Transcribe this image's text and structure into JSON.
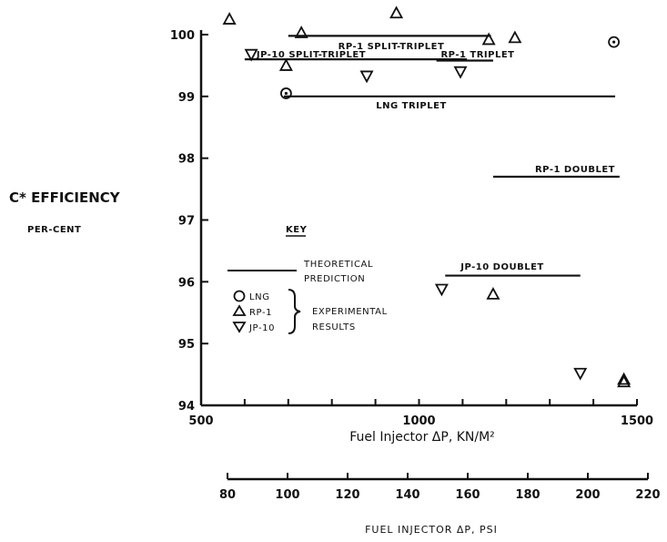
{
  "chart_data": {
    "type": "scatter",
    "ylabel": "C* EFFICIENCY",
    "ylabel_sub": "PER-CENT",
    "ylim": [
      94,
      100
    ],
    "y_ticks": [
      "94",
      "95",
      "96",
      "97",
      "98",
      "99",
      "100"
    ],
    "xlabel": "Fuel Injector ΔP, KN/M²",
    "xlim": [
      500,
      1500
    ],
    "x_ticks": [
      "500",
      "1000",
      "1500"
    ],
    "x2label": "FUEL INJECTOR ΔP, PSI",
    "x2lim": [
      80,
      220
    ],
    "x2_ticks": [
      "80",
      "100",
      "120",
      "140",
      "160",
      "180",
      "200",
      "220"
    ],
    "prediction_lines": [
      {
        "name": "RP-1 SPLIT-TRIPLET",
        "x": [
          700,
          1165
        ],
        "y": 99.98
      },
      {
        "name": "JP-10 SPLIT-TRIPLET",
        "x": [
          600,
          1110
        ],
        "y": 99.6
      },
      {
        "name": "RP-1 TRIPLET",
        "x": [
          1040,
          1170
        ],
        "y": 99.58
      },
      {
        "name": "LNG TRIPLET",
        "x": [
          690,
          1450
        ],
        "y": 99.0
      },
      {
        "name": "RP-1 DOUBLET",
        "x": [
          1170,
          1460
        ],
        "y": 97.7
      },
      {
        "name": "JP-10 DOUBLET",
        "x": [
          1060,
          1370
        ],
        "y": 96.1
      }
    ],
    "series": [
      {
        "name": "LNG",
        "marker": "circle",
        "points": [
          [
            695,
            99.05
          ],
          [
            1447,
            99.88
          ]
        ]
      },
      {
        "name": "RP-1",
        "marker": "triangle-up",
        "points": [
          [
            565,
            100.25
          ],
          [
            730,
            100.03
          ],
          [
            948,
            100.35
          ],
          [
            1160,
            99.92
          ],
          [
            1220,
            99.95
          ],
          [
            695,
            99.5
          ],
          [
            1170,
            95.8
          ],
          [
            1470,
            94.42
          ],
          [
            1470,
            94.38
          ]
        ]
      },
      {
        "name": "JP-10",
        "marker": "triangle-down",
        "points": [
          [
            615,
            99.68
          ],
          [
            880,
            99.33
          ],
          [
            1095,
            99.4
          ],
          [
            1052,
            95.88
          ],
          [
            1370,
            94.52
          ]
        ]
      }
    ],
    "key": {
      "title": "KEY",
      "line_label_1": "THEORETICAL",
      "line_label_2": "PREDICTION",
      "entries": [
        "LNG",
        "RP-1",
        "JP-10"
      ],
      "group_label_1": "EXPERIMENTAL",
      "group_label_2": "RESULTS"
    },
    "grid": false
  }
}
